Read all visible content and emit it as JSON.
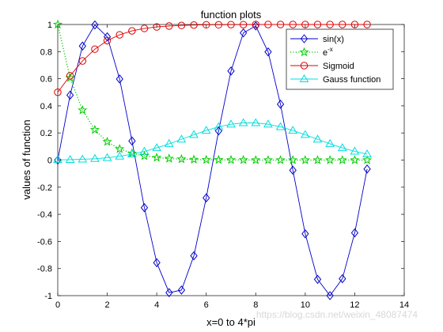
{
  "chart_data": {
    "type": "line",
    "title": "function plots",
    "xlabel": "x=0 to 4*pi",
    "ylabel": "values of function",
    "xlim": [
      0,
      14
    ],
    "ylim": [
      -1,
      1
    ],
    "xticks": [
      0,
      2,
      4,
      6,
      8,
      10,
      12,
      14
    ],
    "yticks": [
      -1,
      -0.8,
      -0.6,
      -0.4,
      -0.2,
      0,
      0.2,
      0.4,
      0.6,
      0.8,
      1
    ],
    "grid": false,
    "legend_location": "top-right",
    "x": [
      0,
      0.5,
      1,
      1.5,
      2,
      2.5,
      3,
      3.5,
      4,
      4.5,
      5,
      5.5,
      6,
      6.5,
      7,
      7.5,
      8,
      8.5,
      9,
      9.5,
      10,
      10.5,
      11,
      11.5,
      12,
      12.5
    ],
    "series": [
      {
        "name": "sin(x)",
        "color": "#0000cc",
        "line_style": "solid",
        "marker": "diamond",
        "values": [
          0,
          0.479,
          0.841,
          0.997,
          0.909,
          0.598,
          0.141,
          -0.351,
          -0.757,
          -0.978,
          -0.959,
          -0.706,
          -0.279,
          0.215,
          0.657,
          0.938,
          0.989,
          0.798,
          0.412,
          -0.075,
          -0.544,
          -0.88,
          -1.0,
          -0.875,
          -0.537,
          -0.066
        ]
      },
      {
        "name": "e",
        "name_superscript": "-x",
        "color": "#00cc00",
        "line_style": "dotted",
        "marker": "pentagram",
        "values": [
          1,
          0.607,
          0.368,
          0.223,
          0.135,
          0.082,
          0.05,
          0.03,
          0.018,
          0.011,
          0.007,
          0.004,
          0.002,
          0.002,
          0.001,
          0.001,
          0,
          0,
          0,
          0,
          0,
          0,
          0,
          0,
          0,
          0
        ]
      },
      {
        "name": "Sigmoid",
        "color": "#dd0000",
        "line_style": "solid",
        "marker": "circle",
        "values": [
          0.5,
          0.622,
          0.731,
          0.818,
          0.881,
          0.924,
          0.953,
          0.971,
          0.982,
          0.989,
          0.993,
          0.996,
          0.998,
          0.998,
          0.999,
          0.999,
          1,
          1,
          1,
          1,
          1,
          1,
          1,
          1,
          1,
          1
        ]
      },
      {
        "name": "Gauss function",
        "color": "#00dddd",
        "line_style": "solid",
        "marker": "triangle",
        "values": [
          0.002,
          0.003,
          0.006,
          0.01,
          0.017,
          0.028,
          0.044,
          0.064,
          0.09,
          0.12,
          0.153,
          0.187,
          0.218,
          0.245,
          0.264,
          0.274,
          0.274,
          0.264,
          0.245,
          0.218,
          0.187,
          0.153,
          0.12,
          0.09,
          0.064,
          0.044
        ]
      }
    ]
  },
  "watermark": "https://blog.csdn.net/weixin_48087474"
}
